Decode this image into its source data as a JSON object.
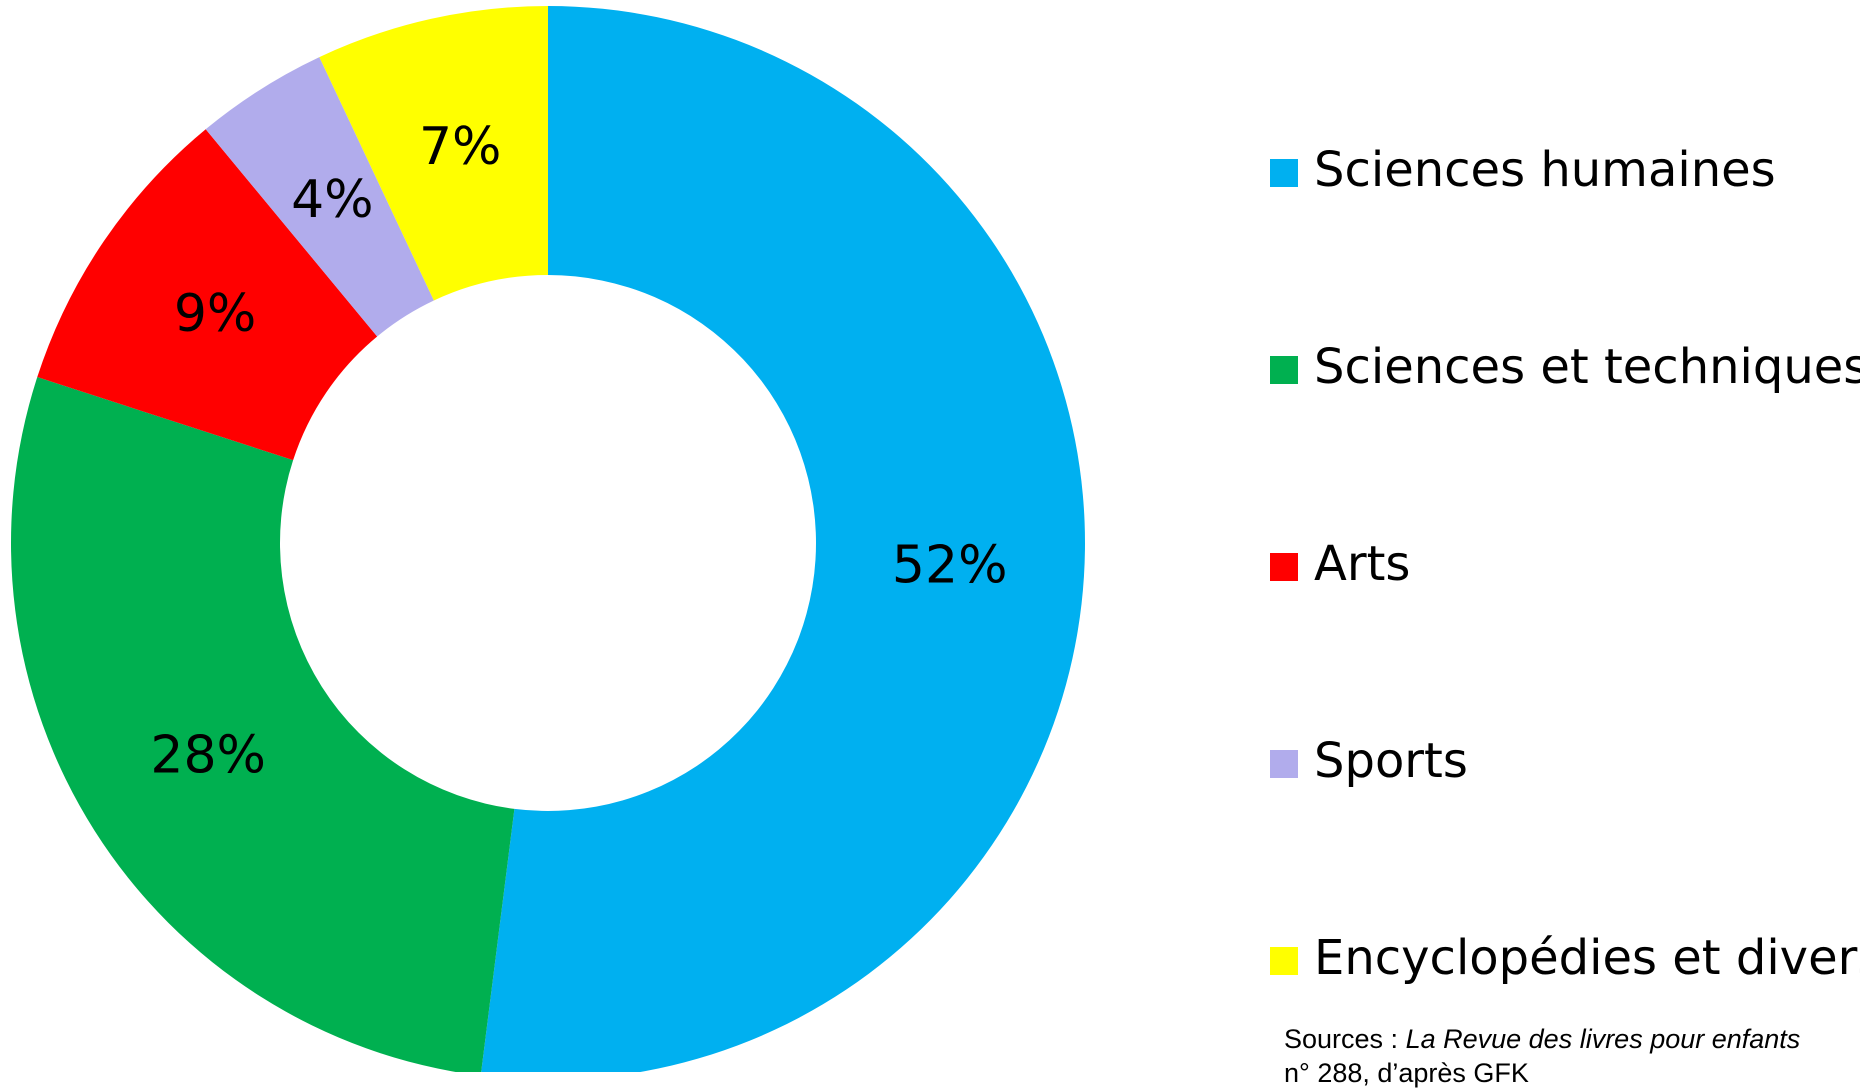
{
  "chart_data": {
    "type": "donut",
    "categories": [
      "Sciences humaines",
      "Sciences et techniques",
      "Arts",
      "Sports",
      "Encyclopédies et divers"
    ],
    "values": [
      52,
      28,
      9,
      4,
      7
    ],
    "value_labels": [
      "52%",
      "28%",
      "9%",
      "4%",
      "7%"
    ],
    "colors": [
      "#00b0f0",
      "#00b050",
      "#ff0000",
      "#b1acec",
      "#ffff00"
    ],
    "legend": "right",
    "source": {
      "prefix": "Sources :",
      "italic": "La Revue des livres pour enfants",
      "suffix": "n° 288, d’après GFK"
    }
  }
}
